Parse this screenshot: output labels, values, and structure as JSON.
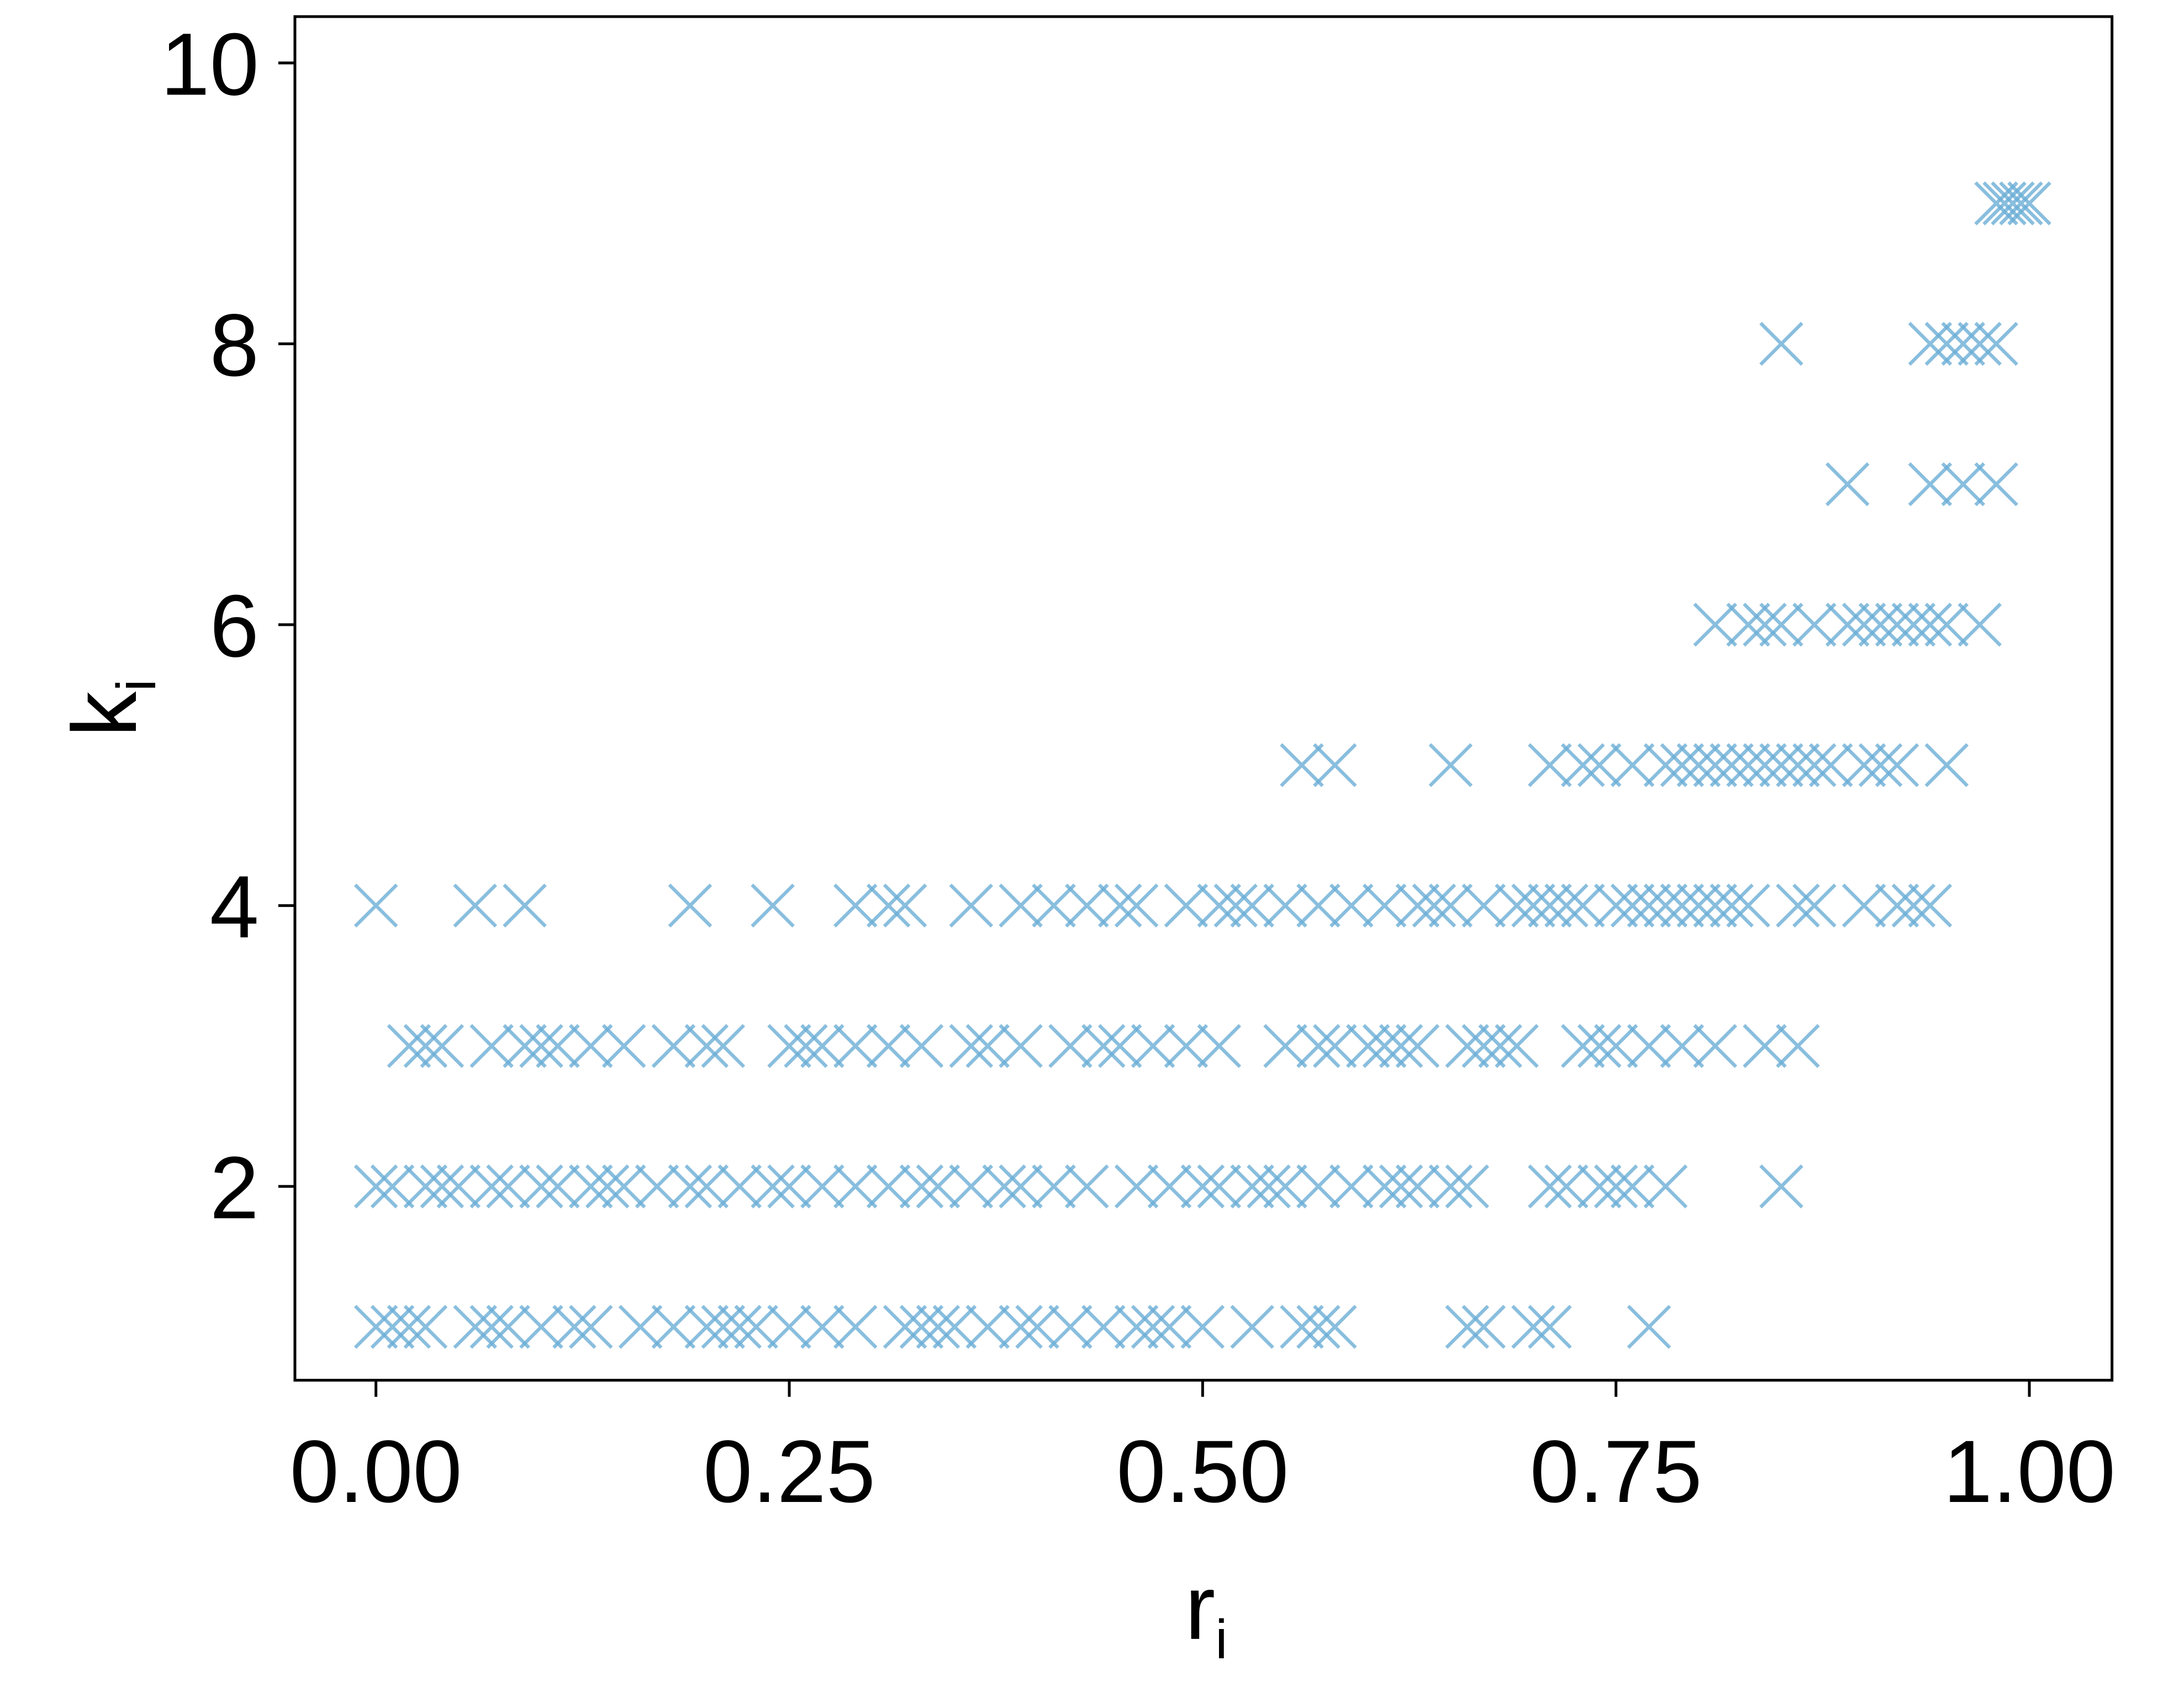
{
  "chart_data": {
    "type": "scatter",
    "x_label": "r",
    "x_label_sub": "i",
    "y_label": "k",
    "y_label_sub": "i",
    "color": "#6baed6",
    "xlim": [
      -0.049,
      1.05
    ],
    "ylim": [
      0.62,
      10.33
    ],
    "xticks": [
      {
        "value": 0,
        "label": "0.00"
      },
      0.25,
      {
        "value": 0.5,
        "label": "0.50"
      },
      0.75,
      {
        "value": 1,
        "label": "1.00"
      }
    ],
    "yticks": [
      2,
      4,
      6,
      8,
      10
    ],
    "points": [
      [
        0.98,
        9
      ],
      [
        0.985,
        9
      ],
      [
        0.99,
        9
      ],
      [
        0.995,
        9
      ],
      [
        1.0,
        9
      ],
      [
        0.85,
        8
      ],
      [
        0.94,
        8
      ],
      [
        0.95,
        8
      ],
      [
        0.96,
        8
      ],
      [
        0.97,
        8
      ],
      [
        0.98,
        8
      ],
      [
        0.89,
        7
      ],
      [
        0.94,
        7
      ],
      [
        0.96,
        7
      ],
      [
        0.98,
        7
      ],
      [
        0.81,
        6
      ],
      [
        0.83,
        6
      ],
      [
        0.84,
        6
      ],
      [
        0.85,
        6
      ],
      [
        0.87,
        6
      ],
      [
        0.89,
        6
      ],
      [
        0.9,
        6
      ],
      [
        0.91,
        6
      ],
      [
        0.92,
        6
      ],
      [
        0.93,
        6
      ],
      [
        0.94,
        6
      ],
      [
        0.95,
        6
      ],
      [
        0.97,
        6
      ],
      [
        0.56,
        5
      ],
      [
        0.58,
        5
      ],
      [
        0.65,
        5
      ],
      [
        0.71,
        5
      ],
      [
        0.73,
        5
      ],
      [
        0.74,
        5
      ],
      [
        0.76,
        5
      ],
      [
        0.78,
        5
      ],
      [
        0.79,
        5
      ],
      [
        0.8,
        5
      ],
      [
        0.81,
        5
      ],
      [
        0.82,
        5
      ],
      [
        0.83,
        5
      ],
      [
        0.84,
        5
      ],
      [
        0.85,
        5
      ],
      [
        0.86,
        5
      ],
      [
        0.87,
        5
      ],
      [
        0.88,
        5
      ],
      [
        0.9,
        5
      ],
      [
        0.91,
        5
      ],
      [
        0.92,
        5
      ],
      [
        0.95,
        5
      ],
      [
        0,
        4
      ],
      [
        0.06,
        4
      ],
      [
        0.09,
        4
      ],
      [
        0.19,
        4
      ],
      [
        0.24,
        4
      ],
      [
        0.29,
        4
      ],
      [
        0.31,
        4
      ],
      [
        0.32,
        4
      ],
      [
        0.36,
        4
      ],
      [
        0.39,
        4
      ],
      [
        0.41,
        4
      ],
      [
        0.43,
        4
      ],
      [
        0.45,
        4
      ],
      [
        0.46,
        4
      ],
      [
        0.49,
        4
      ],
      [
        0.51,
        4
      ],
      [
        0.52,
        4
      ],
      [
        0.53,
        4
      ],
      [
        0.55,
        4
      ],
      [
        0.57,
        4
      ],
      [
        0.59,
        4
      ],
      [
        0.61,
        4
      ],
      [
        0.63,
        4
      ],
      [
        0.64,
        4
      ],
      [
        0.65,
        4
      ],
      [
        0.67,
        4
      ],
      [
        0.69,
        4
      ],
      [
        0.7,
        4
      ],
      [
        0.71,
        4
      ],
      [
        0.72,
        4
      ],
      [
        0.73,
        4
      ],
      [
        0.75,
        4
      ],
      [
        0.76,
        4
      ],
      [
        0.77,
        4
      ],
      [
        0.78,
        4
      ],
      [
        0.79,
        4
      ],
      [
        0.8,
        4
      ],
      [
        0.81,
        4
      ],
      [
        0.82,
        4
      ],
      [
        0.83,
        4
      ],
      [
        0.86,
        4
      ],
      [
        0.87,
        4
      ],
      [
        0.9,
        4
      ],
      [
        0.92,
        4
      ],
      [
        0.93,
        4
      ],
      [
        0.94,
        4
      ],
      [
        0.02,
        3
      ],
      [
        0.03,
        3
      ],
      [
        0.04,
        3
      ],
      [
        0.07,
        3
      ],
      [
        0.09,
        3
      ],
      [
        0.1,
        3
      ],
      [
        0.11,
        3
      ],
      [
        0.13,
        3
      ],
      [
        0.15,
        3
      ],
      [
        0.18,
        3
      ],
      [
        0.2,
        3
      ],
      [
        0.21,
        3
      ],
      [
        0.25,
        3
      ],
      [
        0.26,
        3
      ],
      [
        0.27,
        3
      ],
      [
        0.29,
        3
      ],
      [
        0.31,
        3
      ],
      [
        0.33,
        3
      ],
      [
        0.36,
        3
      ],
      [
        0.37,
        3
      ],
      [
        0.39,
        3
      ],
      [
        0.42,
        3
      ],
      [
        0.44,
        3
      ],
      [
        0.45,
        3
      ],
      [
        0.47,
        3
      ],
      [
        0.49,
        3
      ],
      [
        0.51,
        3
      ],
      [
        0.55,
        3
      ],
      [
        0.57,
        3
      ],
      [
        0.58,
        3
      ],
      [
        0.6,
        3
      ],
      [
        0.61,
        3
      ],
      [
        0.62,
        3
      ],
      [
        0.63,
        3
      ],
      [
        0.66,
        3
      ],
      [
        0.67,
        3
      ],
      [
        0.68,
        3
      ],
      [
        0.69,
        3
      ],
      [
        0.73,
        3
      ],
      [
        0.74,
        3
      ],
      [
        0.75,
        3
      ],
      [
        0.77,
        3
      ],
      [
        0.79,
        3
      ],
      [
        0.81,
        3
      ],
      [
        0.84,
        3
      ],
      [
        0.86,
        3
      ],
      [
        0,
        2
      ],
      [
        0.01,
        2
      ],
      [
        0.03,
        2
      ],
      [
        0.04,
        2
      ],
      [
        0.05,
        2
      ],
      [
        0.07,
        2
      ],
      [
        0.08,
        2
      ],
      [
        0.1,
        2
      ],
      [
        0.11,
        2
      ],
      [
        0.13,
        2
      ],
      [
        0.14,
        2
      ],
      [
        0.15,
        2
      ],
      [
        0.17,
        2
      ],
      [
        0.19,
        2
      ],
      [
        0.2,
        2
      ],
      [
        0.22,
        2
      ],
      [
        0.24,
        2
      ],
      [
        0.25,
        2
      ],
      [
        0.27,
        2
      ],
      [
        0.29,
        2
      ],
      [
        0.31,
        2
      ],
      [
        0.33,
        2
      ],
      [
        0.34,
        2
      ],
      [
        0.36,
        2
      ],
      [
        0.38,
        2
      ],
      [
        0.39,
        2
      ],
      [
        0.41,
        2
      ],
      [
        0.43,
        2
      ],
      [
        0.46,
        2
      ],
      [
        0.48,
        2
      ],
      [
        0.5,
        2
      ],
      [
        0.51,
        2
      ],
      [
        0.53,
        2
      ],
      [
        0.54,
        2
      ],
      [
        0.55,
        2
      ],
      [
        0.57,
        2
      ],
      [
        0.59,
        2
      ],
      [
        0.61,
        2
      ],
      [
        0.62,
        2
      ],
      [
        0.63,
        2
      ],
      [
        0.65,
        2
      ],
      [
        0.66,
        2
      ],
      [
        0.71,
        2
      ],
      [
        0.72,
        2
      ],
      [
        0.74,
        2
      ],
      [
        0.75,
        2
      ],
      [
        0.76,
        2
      ],
      [
        0.78,
        2
      ],
      [
        0.85,
        2
      ],
      [
        0,
        1
      ],
      [
        0.01,
        1
      ],
      [
        0.02,
        1
      ],
      [
        0.03,
        1
      ],
      [
        0.06,
        1
      ],
      [
        0.07,
        1
      ],
      [
        0.08,
        1
      ],
      [
        0.1,
        1
      ],
      [
        0.12,
        1
      ],
      [
        0.13,
        1
      ],
      [
        0.16,
        1
      ],
      [
        0.18,
        1
      ],
      [
        0.2,
        1
      ],
      [
        0.21,
        1
      ],
      [
        0.22,
        1
      ],
      [
        0.23,
        1
      ],
      [
        0.25,
        1
      ],
      [
        0.27,
        1
      ],
      [
        0.29,
        1
      ],
      [
        0.32,
        1
      ],
      [
        0.33,
        1
      ],
      [
        0.34,
        1
      ],
      [
        0.35,
        1
      ],
      [
        0.37,
        1
      ],
      [
        0.39,
        1
      ],
      [
        0.4,
        1
      ],
      [
        0.42,
        1
      ],
      [
        0.44,
        1
      ],
      [
        0.46,
        1
      ],
      [
        0.47,
        1
      ],
      [
        0.48,
        1
      ],
      [
        0.5,
        1
      ],
      [
        0.53,
        1
      ],
      [
        0.56,
        1
      ],
      [
        0.57,
        1
      ],
      [
        0.58,
        1
      ],
      [
        0.66,
        1
      ],
      [
        0.67,
        1
      ],
      [
        0.7,
        1
      ],
      [
        0.71,
        1
      ],
      [
        0.77,
        1
      ]
    ]
  }
}
